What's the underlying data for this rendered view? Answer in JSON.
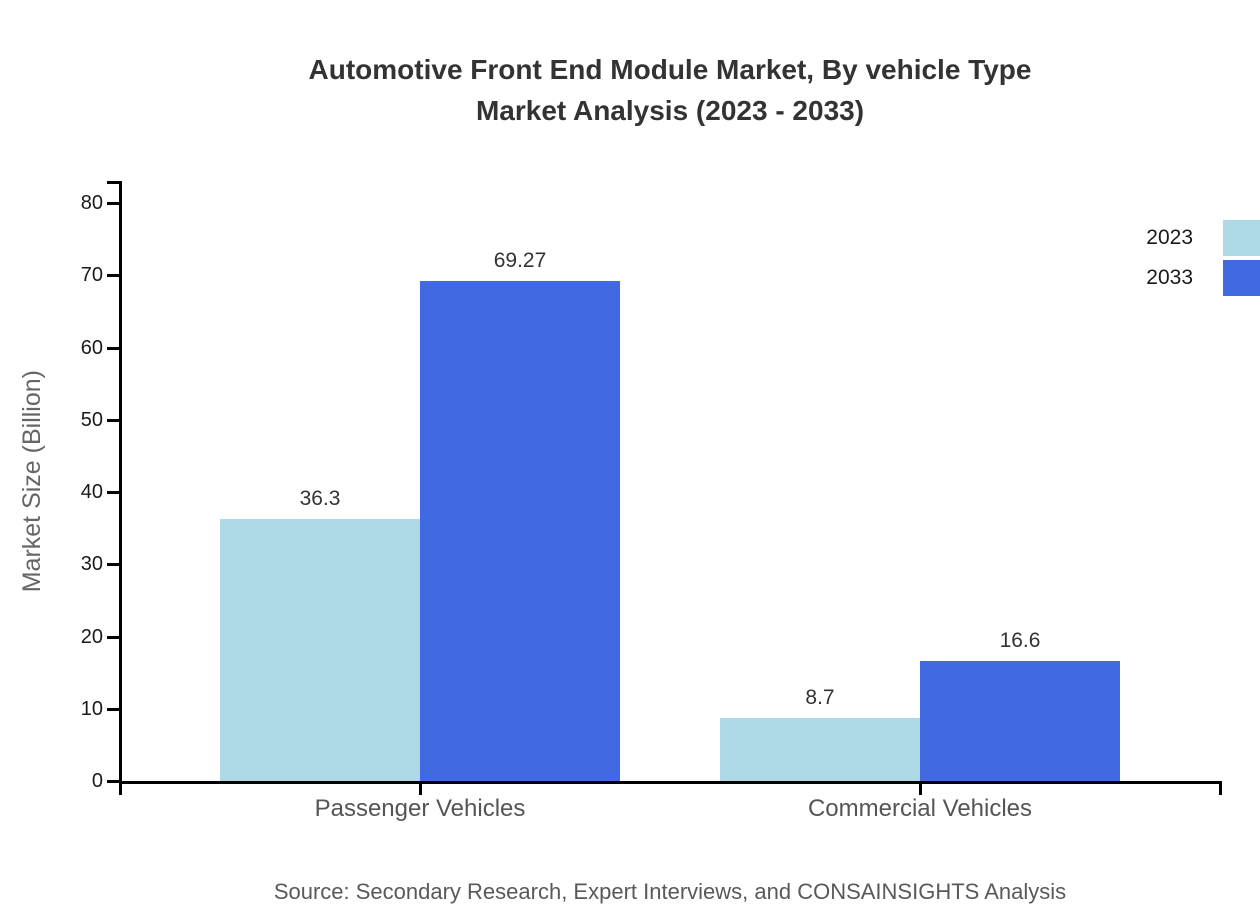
{
  "header": {
    "title_line1": "Automotive Front End Module Market, By vehicle Type",
    "title_line2": "Market Analysis (2023 - 2033)"
  },
  "source_note": "Source: Secondary Research, Expert Interviews, and CONSAINSIGHTS Analysis",
  "colors": {
    "series_2023": "#ADD8E6",
    "series_2033": "#4169E1",
    "axis": "#000000",
    "title_text": "#333333",
    "tick_label_text": "#1a1a1a",
    "category_label_text": "#555555",
    "y_axis_label_text": "#666666",
    "value_label_text": "#333333",
    "source_text": "#595959"
  },
  "chart_data": {
    "type": "bar",
    "title": "Automotive Front End Module Market, By vehicle Type Market Analysis (2023 - 2033)",
    "categories": [
      "Passenger Vehicles",
      "Commercial Vehicles"
    ],
    "series": [
      {
        "name": "2023",
        "color": "#ADD8E6",
        "values": [
          36.3,
          8.7
        ]
      },
      {
        "name": "2033",
        "color": "#4169E1",
        "values": [
          69.27,
          16.6
        ]
      }
    ],
    "xlabel": "",
    "ylabel": "Market Size (Billion)",
    "ylim": [
      0,
      80
    ],
    "y_ticks": [
      0,
      10,
      20,
      30,
      40,
      50,
      60,
      70,
      80
    ],
    "value_labels": {
      "2023": [
        "36.3",
        "8.7"
      ],
      "2033": [
        "69.27",
        "16.6"
      ]
    },
    "legend_position": "upper-right",
    "grid": false
  }
}
